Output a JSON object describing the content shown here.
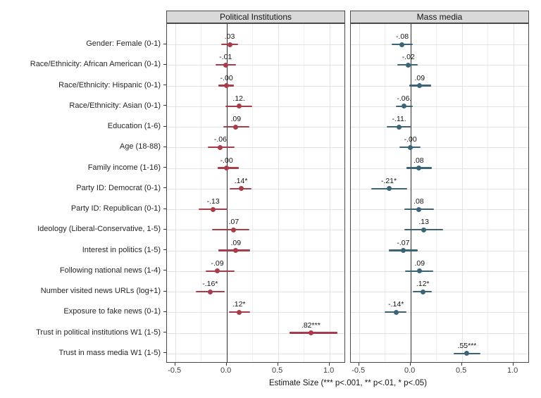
{
  "chart_data": {
    "type": "scatter",
    "subtype": "coefficient-dot-whisker-plot",
    "title": "",
    "xlabel": "Estimate Size (*** p<.001, ** p<.01, * p<.05)",
    "ylabel": "",
    "xlim": [
      -0.58,
      1.16
    ],
    "x_ticks_values": [
      -0.5,
      0.0,
      0.5,
      1.0
    ],
    "x_ticks_labels": [
      "-0.5",
      "0.0",
      "0.5",
      "1.0"
    ],
    "x_minor_gridlines": [
      -0.25,
      0.25,
      0.75
    ],
    "grid": "major-and-minor-x, major-y",
    "zero_reference_line": 0,
    "categories": [
      "Gender: Female (0-1)",
      "Race/Ethnicity: African American (0-1)",
      "Race/Ethnicity: Hispanic (0-1)",
      "Race/Ethnicity: Asian (0-1)",
      "Education (1-6)",
      "Age (18-88)",
      "Family income (1-16)",
      "Party ID: Democrat (0-1)",
      "Party ID: Republican (0-1)",
      "Ideology (Liberal-Conservative, 1-5)",
      "Interest in politics (1-5)",
      "Following national news (1-4)",
      "Number visited news URLs (log+1)",
      "Exposure to fake news (0-1)",
      "Trust in political institutions W1 (1-5)",
      "Trust in mass media W1 (1-5)"
    ],
    "panels": [
      {
        "title": "Political Institutions",
        "color": "#a83c4b",
        "points": [
          {
            "label": ".03",
            "value": 0.03,
            "lo": -0.05,
            "hi": 0.11
          },
          {
            "label": "-.01",
            "value": -0.01,
            "lo": -0.11,
            "hi": 0.09
          },
          {
            "label": "-.00",
            "value": 0.0,
            "lo": -0.08,
            "hi": 0.07
          },
          {
            "label": ".12.",
            "value": 0.12,
            "lo": -0.01,
            "hi": 0.25
          },
          {
            "label": ".09",
            "value": 0.09,
            "lo": -0.03,
            "hi": 0.22
          },
          {
            "label": "-.06",
            "value": -0.06,
            "lo": -0.18,
            "hi": 0.08
          },
          {
            "label": "-.00",
            "value": 0.0,
            "lo": -0.09,
            "hi": 0.12
          },
          {
            "label": ".14*",
            "value": 0.14,
            "lo": 0.03,
            "hi": 0.24
          },
          {
            "label": "-.13",
            "value": -0.13,
            "lo": -0.27,
            "hi": 0.01
          },
          {
            "label": ".07",
            "value": 0.07,
            "lo": -0.14,
            "hi": 0.22
          },
          {
            "label": ".09",
            "value": 0.09,
            "lo": -0.08,
            "hi": 0.23
          },
          {
            "label": "-.09",
            "value": -0.09,
            "lo": -0.2,
            "hi": 0.08
          },
          {
            "label": "-.16*",
            "value": -0.16,
            "lo": -0.3,
            "hi": -0.02
          },
          {
            "label": ".12*",
            "value": 0.12,
            "lo": 0.02,
            "hi": 0.23
          },
          {
            "label": ".82***",
            "value": 0.82,
            "lo": 0.61,
            "hi": 1.08
          },
          null
        ]
      },
      {
        "title": "Mass media",
        "color": "#3c6477",
        "points": [
          {
            "label": "-.08",
            "value": -0.08,
            "lo": -0.18,
            "hi": 0.02
          },
          {
            "label": "-.02",
            "value": -0.02,
            "lo": -0.13,
            "hi": 0.07
          },
          {
            "label": ".09",
            "value": 0.09,
            "lo": -0.01,
            "hi": 0.2
          },
          {
            "label": "-.06.",
            "value": -0.06,
            "lo": -0.14,
            "hi": 0.02
          },
          {
            "label": "-.11.",
            "value": -0.11,
            "lo": -0.23,
            "hi": 0.0
          },
          {
            "label": "-.00",
            "value": 0.0,
            "lo": -0.11,
            "hi": 0.1
          },
          {
            "label": ".08",
            "value": 0.08,
            "lo": -0.04,
            "hi": 0.21
          },
          {
            "label": "-.21*",
            "value": -0.21,
            "lo": -0.38,
            "hi": -0.03
          },
          {
            "label": ".08",
            "value": 0.08,
            "lo": -0.06,
            "hi": 0.23
          },
          {
            "label": ".13",
            "value": 0.13,
            "lo": -0.06,
            "hi": 0.32
          },
          {
            "label": "-.07",
            "value": -0.07,
            "lo": -0.21,
            "hi": 0.07
          },
          {
            "label": ".09",
            "value": 0.09,
            "lo": -0.05,
            "hi": 0.22
          },
          {
            "label": ".12*",
            "value": 0.12,
            "lo": 0.02,
            "hi": 0.21
          },
          {
            "label": "-.14*",
            "value": -0.14,
            "lo": -0.25,
            "hi": -0.04
          },
          null,
          {
            "label": ".55***",
            "value": 0.55,
            "lo": 0.42,
            "hi": 0.68
          }
        ]
      }
    ],
    "style": {
      "strip_background": "#d9d9d9",
      "panel_border": "#4a4a4a",
      "grid_major": "#e3e3e3",
      "grid_minor": "#efefef",
      "zero_line": "#2f2f2f",
      "tick_color": "#333333",
      "text_color": "#141414"
    }
  }
}
